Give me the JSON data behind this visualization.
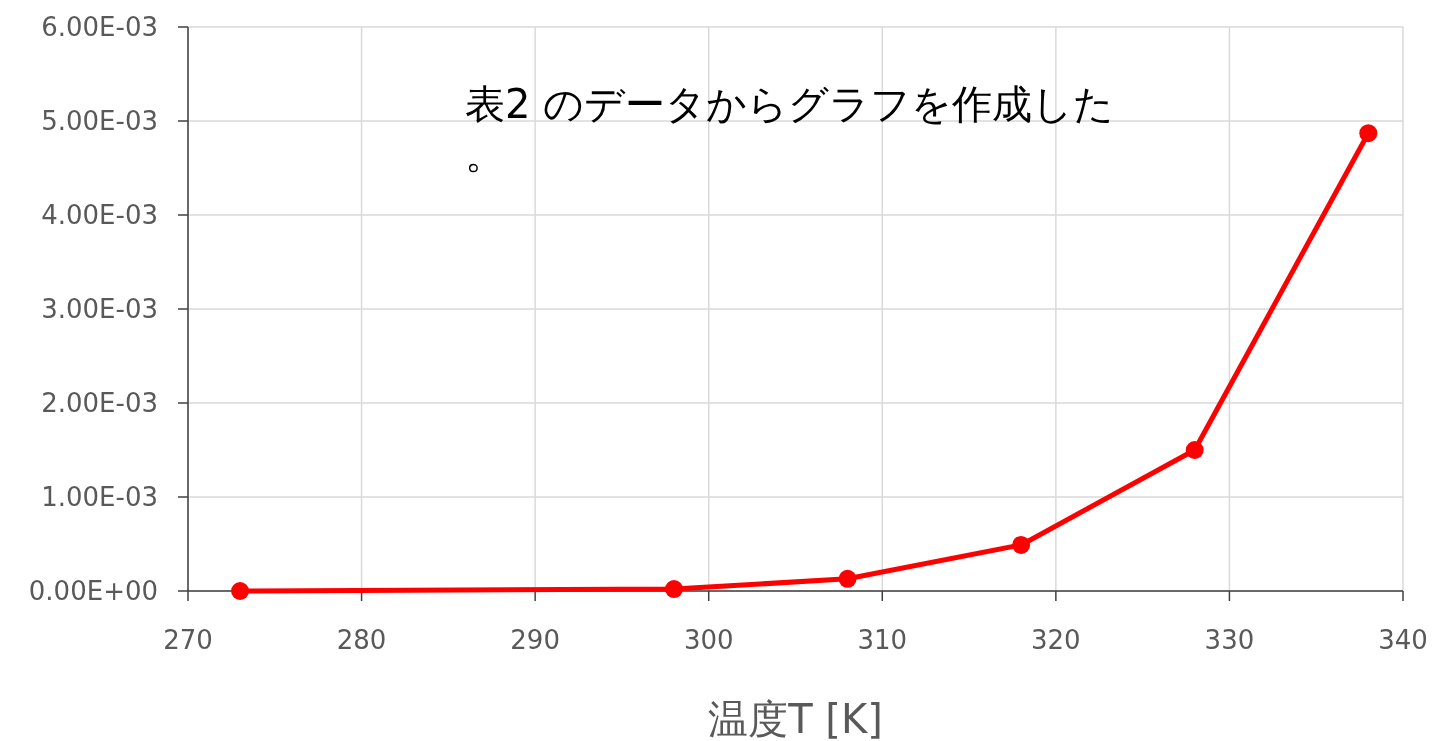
{
  "chart_data": {
    "type": "line",
    "xlabel": "温度T [K]",
    "annotations": [
      "表2 のデータからグラフを作成した。"
    ],
    "x": [
      273,
      298,
      308,
      318,
      328,
      338
    ],
    "series": [
      {
        "color": "#ff0000",
        "values": [
          0.0,
          2e-05,
          0.00013,
          0.00049,
          0.0015,
          0.00487
        ]
      }
    ],
    "xlim": [
      270,
      340
    ],
    "xticks": [
      270,
      280,
      290,
      300,
      310,
      320,
      330,
      340
    ],
    "ylim": [
      0,
      0.006
    ],
    "yticks": [
      {
        "value": 0,
        "label": "0.00E+00"
      },
      {
        "value": 0.001,
        "label": "1.00E-03"
      },
      {
        "value": 0.002,
        "label": "2.00E-03"
      },
      {
        "value": 0.003,
        "label": "3.00E-03"
      },
      {
        "value": 0.004,
        "label": "4.00E-03"
      },
      {
        "value": 0.005,
        "label": "5.00E-03"
      },
      {
        "value": 0.006,
        "label": "6.00E-03"
      }
    ],
    "grid": true,
    "marker": "circle",
    "line_style": "solid"
  }
}
